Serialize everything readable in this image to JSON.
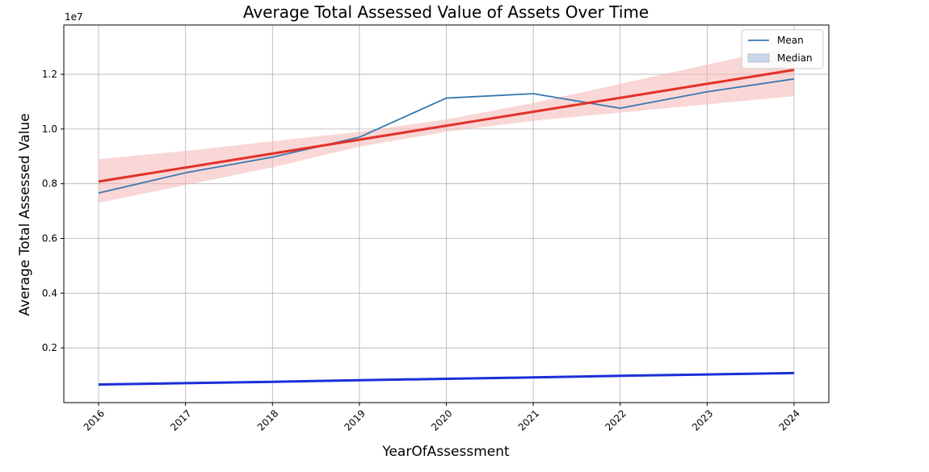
{
  "chart_data": {
    "type": "line",
    "title": "Average Total Assessed Value of Assets Over Time",
    "xlabel": "YearOfAssessment",
    "ylabel": "Average Total Assessed Value",
    "y_offset_label": "1e7",
    "x": [
      2016,
      2017,
      2018,
      2019,
      2020,
      2021,
      2022,
      2023,
      2024
    ],
    "xlim": [
      2015.6,
      2024.4
    ],
    "ylim": [
      0.0,
      1.38
    ],
    "y_ticks": [
      0.2,
      0.4,
      0.6,
      0.8,
      1.0,
      1.2
    ],
    "y_tick_labels": [
      "0.2",
      "0.4",
      "0.6",
      "0.8",
      "1.0",
      "1.2"
    ],
    "x_tick_labels": [
      "2016",
      "2017",
      "2018",
      "2019",
      "2020",
      "2021",
      "2022",
      "2023",
      "2024"
    ],
    "grid": true,
    "legend_position": "top-right",
    "series": [
      {
        "name": "Mean",
        "kind": "line",
        "color": "#3a78b0",
        "values": [
          0.766,
          0.84,
          0.897,
          0.97,
          1.113,
          1.129,
          1.076,
          1.136,
          1.183
        ]
      },
      {
        "name": "Median",
        "kind": "line",
        "color": "#1a2fd8",
        "values": [
          0.067,
          0.072,
          0.077,
          0.082,
          0.088,
          0.093,
          0.098,
          0.103,
          0.108
        ]
      },
      {
        "kind": "regression",
        "color": "#e3302a",
        "band_color": "#f4b6b4",
        "values": [
          0.808,
          0.859,
          0.91,
          0.961,
          1.012,
          1.063,
          1.114,
          1.165,
          1.216
        ],
        "band_low": [
          0.73,
          0.795,
          0.86,
          0.935,
          0.99,
          1.03,
          1.06,
          1.09,
          1.12
        ],
        "band_high": [
          0.89,
          0.92,
          0.955,
          0.99,
          1.035,
          1.095,
          1.165,
          1.235,
          1.305
        ]
      },
      {
        "kind": "regression",
        "color": "#1a2fd8",
        "band_color": "#b9c3f0",
        "values": [
          0.066,
          0.071,
          0.076,
          0.082,
          0.087,
          0.092,
          0.098,
          0.103,
          0.108
        ],
        "band_low": [
          0.064,
          0.069,
          0.075,
          0.081,
          0.086,
          0.091,
          0.096,
          0.101,
          0.105
        ],
        "band_high": [
          0.068,
          0.073,
          0.078,
          0.083,
          0.089,
          0.094,
          0.1,
          0.105,
          0.111
        ]
      }
    ],
    "legend": [
      {
        "label": "Mean",
        "marker": "line",
        "color": "#3a78b0"
      },
      {
        "label": "Median",
        "marker": "patch",
        "color": "#c9d6e8"
      }
    ]
  }
}
